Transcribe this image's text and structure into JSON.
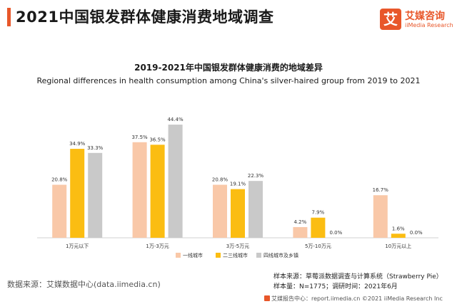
{
  "header": {
    "title": "2021中国银发群体健康消费地域调查"
  },
  "logo": {
    "mark": "艾",
    "name_cn": "艾媒咨询",
    "name_en": "iiMedia Research"
  },
  "sources": {
    "left": "数据来源：艾媒数据中心(data.iimedia.cn)",
    "right_line1": "样本来源：草莓派数据调查与计算系统（Strawberry Pie）",
    "right_line2": "样本量：N=1775；调研时间：2021年6月"
  },
  "footer": {
    "text": "艾媒报告中心：report.iimedia.cn ©2021  iiMedia Research  Inc"
  },
  "colors": {
    "tier1": "#f9c8a8",
    "tier23": "#fbbd12",
    "tier4": "#c9c9c9",
    "accent": "#e8572a"
  },
  "chart_data": {
    "type": "bar",
    "title": "2019-2021年中国银发群体健康消费的地域差异",
    "subtitle": "Regional differences in health consumption among China's silver-haired group from 2019 to 2021",
    "xlabel": "",
    "ylabel": "",
    "ylim": [
      0,
      50
    ],
    "grid": false,
    "legend_position": "bottom",
    "categories": [
      "1万元以下",
      "1万-3万元",
      "3万-5万元",
      "5万-10万元",
      "10万元以上"
    ],
    "series": [
      {
        "name": "一线城市",
        "values": [
          20.8,
          37.5,
          20.8,
          4.2,
          16.7
        ],
        "labels": [
          "20.8%",
          "37.5%",
          "20.8%",
          "4.2%",
          "16.7%"
        ]
      },
      {
        "name": "二三线城市",
        "values": [
          34.9,
          36.5,
          19.1,
          7.9,
          1.6
        ],
        "labels": [
          "34.9%",
          "36.5%",
          "19.1%",
          "7.9%",
          "1.6%"
        ]
      },
      {
        "name": "四线城市及乡镇",
        "values": [
          33.3,
          44.4,
          22.3,
          0.0,
          0.0
        ],
        "labels": [
          "33.3%",
          "44.4%",
          "22.3%",
          "0.0%",
          "0.0%"
        ]
      }
    ]
  }
}
